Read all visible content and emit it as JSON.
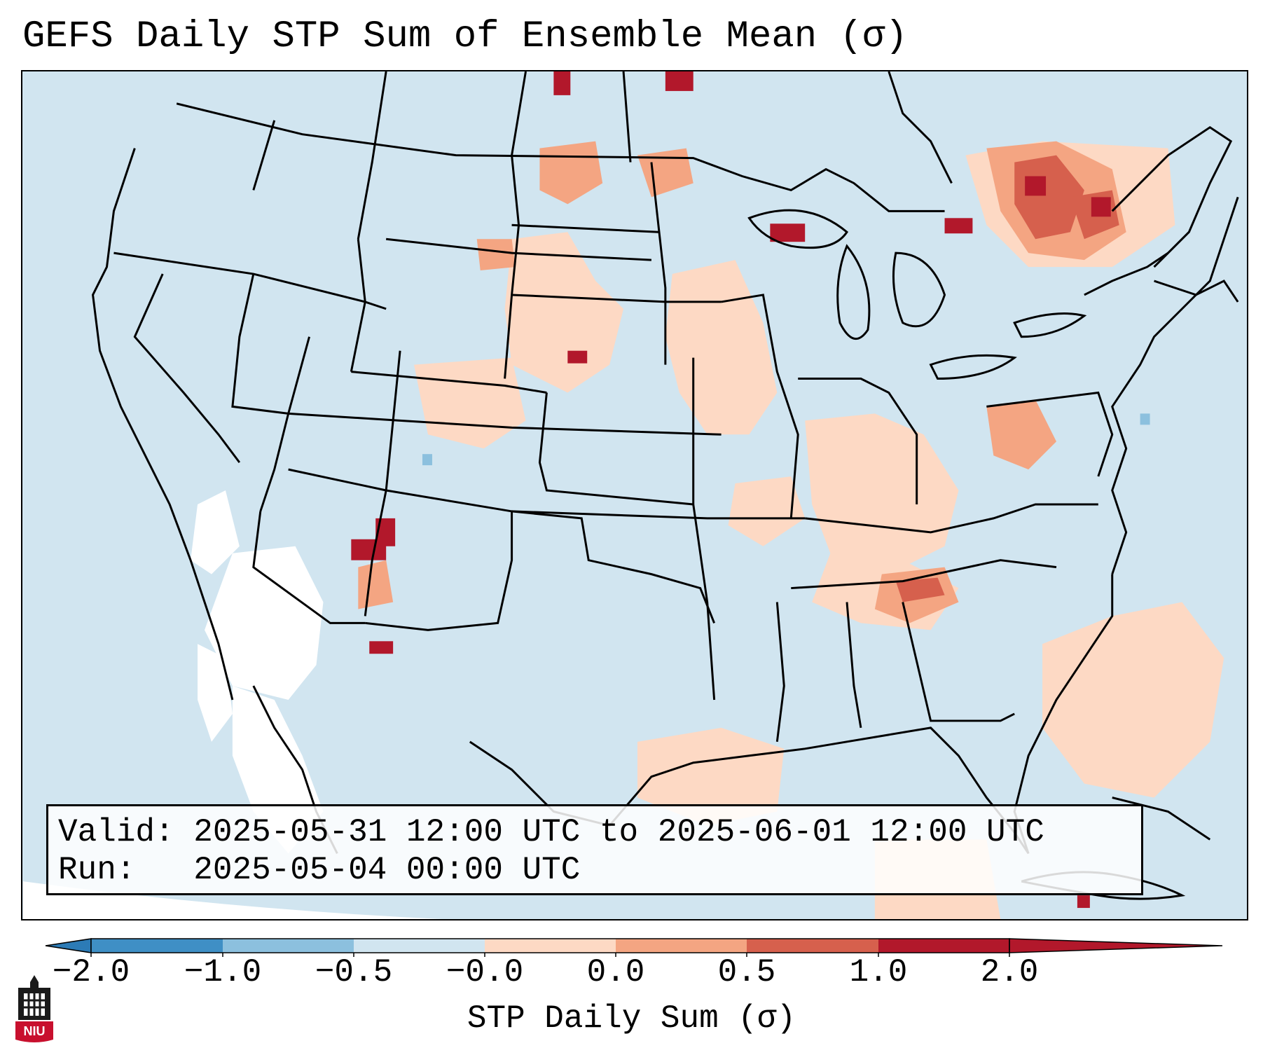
{
  "title": "GEFS Daily STP Sum of Ensemble Mean (σ)",
  "info": {
    "valid_label": "Valid:",
    "valid_value": "2025-05-31 12:00 UTC to 2025-06-01 12:00 UTC",
    "run_label": "Run:",
    "run_value": "2025-05-04 00:00 UTC"
  },
  "colorbar": {
    "label": "STP Daily Sum (σ)",
    "ticks": [
      "−2.0",
      "−1.0",
      "−0.5",
      "−0.0",
      "0.0",
      "0.5",
      "1.0",
      "2.0"
    ],
    "colors": [
      "#2c7bb6",
      "#5b9fcf",
      "#a6cbe3",
      "#d0e3ef",
      "#f7f7f7",
      "#fdd5bf",
      "#f09a7b",
      "#d6604d",
      "#b2182b"
    ]
  },
  "legend_bins": [
    {
      "range": "< -2.0",
      "color": "#2c7bb6"
    },
    {
      "range": "-2.0 to -1.0",
      "color": "#3f8fc5"
    },
    {
      "range": "-1.0 to -0.5",
      "color": "#8cc0de"
    },
    {
      "range": "-0.5 to 0.0",
      "color": "#d1e5f0"
    },
    {
      "range": "0.0 to 0.5",
      "color": "#fdd9c4"
    },
    {
      "range": "0.5 to 1.0",
      "color": "#f4a582"
    },
    {
      "range": "1.0 to 2.0",
      "color": "#d6604d"
    },
    {
      "range": "> 2.0",
      "color": "#b2182b"
    }
  ],
  "logo": {
    "text": "NIU",
    "name": "Northern Illinois University logo"
  }
}
